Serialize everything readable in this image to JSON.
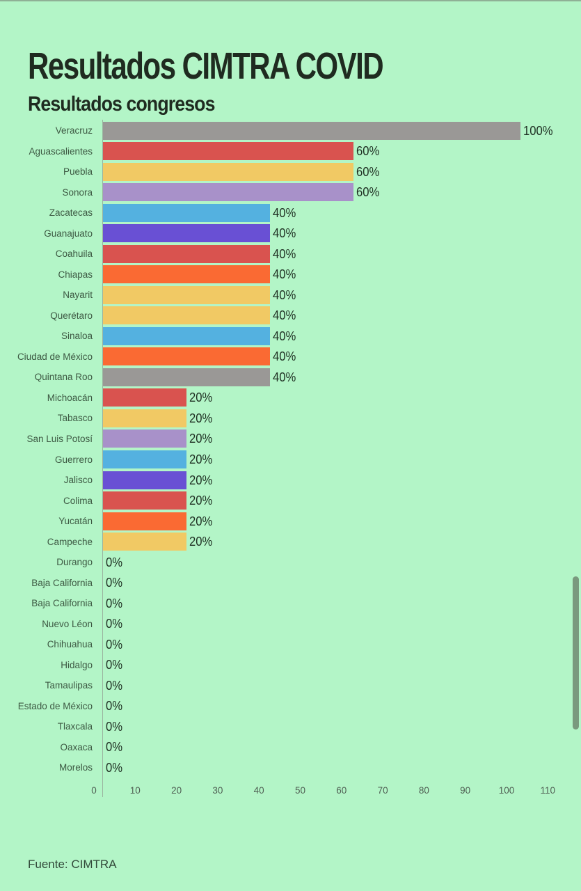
{
  "header": {
    "title": "Resultados CIMTRA COVID",
    "subtitle": "Resultados congresos"
  },
  "footer": {
    "source": "Fuente: CIMTRA"
  },
  "colors": {
    "background": "#b3f5c7",
    "top_border": "#8fb096",
    "axis_line": "#9ab4a0",
    "title_text": "#1f2b20",
    "label_text": "#3d5943",
    "value_text": "#1f3023",
    "tick_text": "#4f5f53",
    "source_text": "#32493a",
    "scrollbar": "#7a997e",
    "palette": {
      "gray": "#9a9896",
      "red": "#d9534f",
      "yellow": "#f1c964",
      "purple": "#a891c9",
      "blue": "#54b1e0",
      "indigo": "#6950d4",
      "orange": "#fa6a33"
    }
  },
  "chart_data": {
    "type": "bar",
    "orientation": "horizontal",
    "title": "Resultados CIMTRA COVID",
    "subtitle": "Resultados congresos",
    "source": "Fuente: CIMTRA",
    "xlabel": "",
    "ylabel": "",
    "xlim": [
      0,
      110
    ],
    "x_ticks": [
      0,
      10,
      20,
      30,
      40,
      50,
      60,
      70,
      80,
      90,
      100,
      110
    ],
    "grid": false,
    "legend": false,
    "value_suffix": "%",
    "categories": [
      "Veracruz",
      "Aguascalientes",
      "Puebla",
      "Sonora",
      "Zacatecas",
      "Guanajuato",
      "Coahuila",
      "Chiapas",
      "Nayarit",
      "Querétaro",
      "Sinaloa",
      "Ciudad de México",
      "Quintana Roo",
      "Michoacán",
      "Tabasco",
      "San Luis Potosí",
      "Guerrero",
      "Jalisco",
      "Colima",
      "Yucatán",
      "Campeche",
      "Durango",
      "Baja California",
      "Baja California",
      "Nuevo Léon",
      "Chihuahua",
      "Hidalgo",
      "Tamaulipas",
      "Estado de México",
      "Tlaxcala",
      "Oaxaca",
      "Morelos"
    ],
    "values": [
      100,
      60,
      60,
      60,
      40,
      40,
      40,
      40,
      40,
      40,
      40,
      40,
      40,
      20,
      20,
      20,
      20,
      20,
      20,
      20,
      20,
      0,
      0,
      0,
      0,
      0,
      0,
      0,
      0,
      0,
      0,
      0
    ],
    "bar_colors": [
      "#9a9896",
      "#d9534f",
      "#f1c964",
      "#a891c9",
      "#54b1e0",
      "#6950d4",
      "#d9534f",
      "#fa6a33",
      "#f1c964",
      "#f1c964",
      "#54b1e0",
      "#fa6a33",
      "#9a9896",
      "#d9534f",
      "#f1c964",
      "#a891c9",
      "#54b1e0",
      "#6950d4",
      "#d9534f",
      "#fa6a33",
      "#f1c964",
      "#9a9896",
      "#9a9896",
      "#9a9896",
      "#9a9896",
      "#9a9896",
      "#9a9896",
      "#9a9896",
      "#9a9896",
      "#9a9896",
      "#9a9896",
      "#9a9896"
    ]
  }
}
